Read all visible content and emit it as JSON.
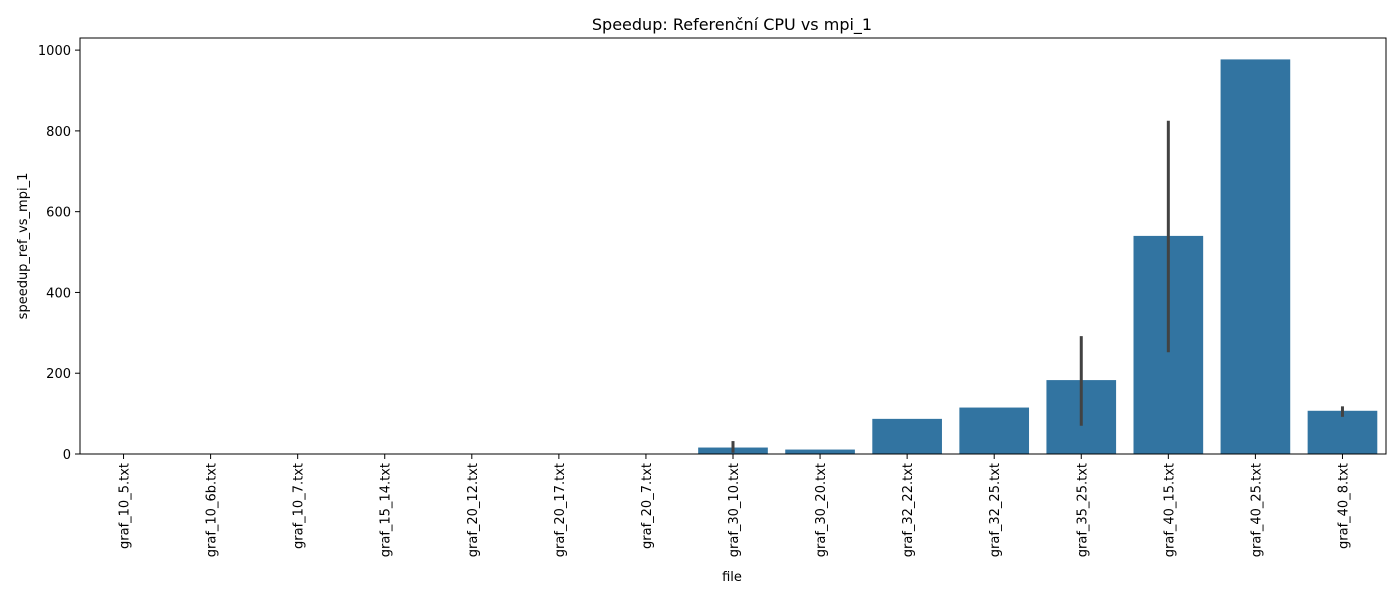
{
  "chart_data": {
    "type": "bar",
    "title": "Speedup: Referenční CPU vs mpi_1",
    "xlabel": "file",
    "ylabel": "speedup_ref_vs_mpi_1",
    "ylim": [
      0,
      1030
    ],
    "yticks": [
      0,
      200,
      400,
      600,
      800,
      1000
    ],
    "grid": false,
    "bar_color": "#3274a1",
    "errorbar_color": "#424242",
    "categories": [
      "graf_10_5.txt",
      "graf_10_6b.txt",
      "graf_10_7.txt",
      "graf_15_14.txt",
      "graf_20_12.txt",
      "graf_20_17.txt",
      "graf_20_7.txt",
      "graf_30_10.txt",
      "graf_30_20.txt",
      "graf_32_22.txt",
      "graf_32_25.txt",
      "graf_35_25.txt",
      "graf_40_15.txt",
      "graf_40_25.txt",
      "graf_40_8.txt"
    ],
    "values": [
      0.4,
      0.5,
      0.5,
      0.6,
      0.7,
      0.8,
      0.6,
      16,
      11,
      87,
      115,
      183,
      540,
      977,
      107
    ],
    "error_low": [
      null,
      null,
      null,
      null,
      null,
      null,
      null,
      3,
      null,
      null,
      null,
      70,
      252,
      null,
      92
    ],
    "error_high": [
      null,
      null,
      null,
      null,
      null,
      null,
      null,
      32,
      null,
      null,
      null,
      292,
      825,
      null,
      118
    ]
  }
}
